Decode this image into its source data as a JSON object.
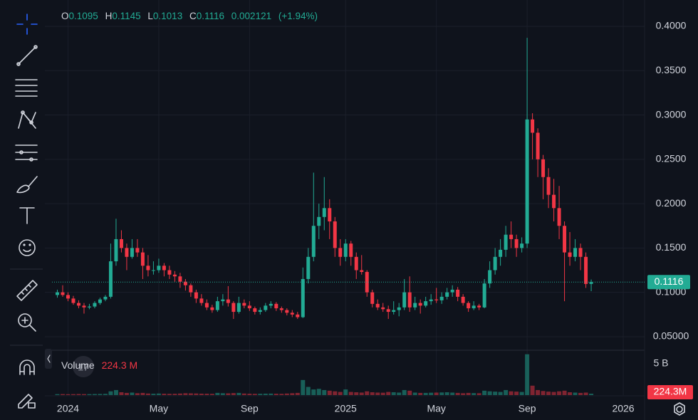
{
  "chart_data": {
    "type": "candlestick",
    "ohlc_labels": [
      "O",
      "H",
      "L",
      "C"
    ],
    "change": 0.002121,
    "change_pct": {
      "value": 1.94,
      "label": "(+1.94%)"
    },
    "up_color": "#22ab94",
    "down_color": "#f23645",
    "ylim": [
      0.0347,
      0.4297
    ],
    "yticks": [
      {
        "value": 0.05,
        "label": "0.05000"
      },
      {
        "value": 0.1,
        "label": "0.1000"
      },
      {
        "value": 0.15,
        "label": "0.1500"
      },
      {
        "value": 0.2,
        "label": "0.2000"
      },
      {
        "value": 0.25,
        "label": "0.2500"
      },
      {
        "value": 0.3,
        "label": "0.3000"
      },
      {
        "value": 0.35,
        "label": "0.3500"
      },
      {
        "value": 0.4,
        "label": "0.4000"
      }
    ],
    "xlim": [
      -1,
      110
    ],
    "xticks": [
      {
        "value": 2,
        "label": "2024"
      },
      {
        "value": 19,
        "label": "May"
      },
      {
        "value": 36,
        "label": "Sep"
      },
      {
        "value": 54,
        "label": "2025"
      },
      {
        "value": 71,
        "label": "May"
      },
      {
        "value": 88,
        "label": "Sep"
      },
      {
        "value": 106,
        "label": "2026"
      }
    ],
    "grid": true,
    "candles": [
      [
        0.097,
        0.103,
        0.094,
        0.1
      ],
      [
        0.1,
        0.108,
        0.095,
        0.097
      ],
      [
        0.097,
        0.1,
        0.09,
        0.093
      ],
      [
        0.093,
        0.096,
        0.086,
        0.088
      ],
      [
        0.088,
        0.091,
        0.082,
        0.085
      ],
      [
        0.085,
        0.088,
        0.076,
        0.083
      ],
      [
        0.083,
        0.087,
        0.081,
        0.084
      ],
      [
        0.084,
        0.09,
        0.082,
        0.088
      ],
      [
        0.088,
        0.094,
        0.086,
        0.092
      ],
      [
        0.092,
        0.097,
        0.09,
        0.095
      ],
      [
        0.095,
        0.155,
        0.093,
        0.135
      ],
      [
        0.135,
        0.183,
        0.13,
        0.16
      ],
      [
        0.16,
        0.17,
        0.145,
        0.15
      ],
      [
        0.15,
        0.155,
        0.125,
        0.14
      ],
      [
        0.14,
        0.16,
        0.138,
        0.15
      ],
      [
        0.15,
        0.16,
        0.14,
        0.145
      ],
      [
        0.145,
        0.15,
        0.115,
        0.13
      ],
      [
        0.13,
        0.142,
        0.118,
        0.125
      ],
      [
        0.125,
        0.135,
        0.12,
        0.125
      ],
      [
        0.125,
        0.138,
        0.122,
        0.13
      ],
      [
        0.13,
        0.133,
        0.118,
        0.125
      ],
      [
        0.125,
        0.13,
        0.115,
        0.12
      ],
      [
        0.12,
        0.124,
        0.112,
        0.118
      ],
      [
        0.118,
        0.122,
        0.105,
        0.112
      ],
      [
        0.112,
        0.115,
        0.102,
        0.108
      ],
      [
        0.108,
        0.11,
        0.095,
        0.1
      ],
      [
        0.1,
        0.103,
        0.088,
        0.093
      ],
      [
        0.093,
        0.098,
        0.085,
        0.088
      ],
      [
        0.088,
        0.092,
        0.08,
        0.083
      ],
      [
        0.083,
        0.086,
        0.077,
        0.08
      ],
      [
        0.08,
        0.095,
        0.078,
        0.09
      ],
      [
        0.09,
        0.098,
        0.085,
        0.092
      ],
      [
        0.092,
        0.107,
        0.084,
        0.088
      ],
      [
        0.088,
        0.09,
        0.07,
        0.078
      ],
      [
        0.078,
        0.095,
        0.076,
        0.088
      ],
      [
        0.088,
        0.092,
        0.082,
        0.085
      ],
      [
        0.085,
        0.09,
        0.079,
        0.082
      ],
      [
        0.082,
        0.084,
        0.075,
        0.078
      ],
      [
        0.078,
        0.083,
        0.075,
        0.08
      ],
      [
        0.08,
        0.088,
        0.078,
        0.085
      ],
      [
        0.085,
        0.09,
        0.082,
        0.087
      ],
      [
        0.087,
        0.089,
        0.079,
        0.082
      ],
      [
        0.082,
        0.084,
        0.077,
        0.08
      ],
      [
        0.08,
        0.082,
        0.074,
        0.077
      ],
      [
        0.077,
        0.08,
        0.072,
        0.075
      ],
      [
        0.075,
        0.078,
        0.07,
        0.072
      ],
      [
        0.072,
        0.128,
        0.071,
        0.115
      ],
      [
        0.115,
        0.15,
        0.11,
        0.14
      ],
      [
        0.14,
        0.235,
        0.135,
        0.175
      ],
      [
        0.175,
        0.2,
        0.16,
        0.185
      ],
      [
        0.185,
        0.23,
        0.17,
        0.195
      ],
      [
        0.195,
        0.205,
        0.16,
        0.18
      ],
      [
        0.18,
        0.185,
        0.14,
        0.15
      ],
      [
        0.15,
        0.16,
        0.13,
        0.14
      ],
      [
        0.14,
        0.16,
        0.135,
        0.155
      ],
      [
        0.155,
        0.158,
        0.13,
        0.14
      ],
      [
        0.14,
        0.145,
        0.115,
        0.125
      ],
      [
        0.125,
        0.142,
        0.12,
        0.123
      ],
      [
        0.123,
        0.125,
        0.095,
        0.1
      ],
      [
        0.1,
        0.103,
        0.083,
        0.087
      ],
      [
        0.087,
        0.092,
        0.08,
        0.083
      ],
      [
        0.083,
        0.088,
        0.078,
        0.081
      ],
      [
        0.081,
        0.085,
        0.07,
        0.078
      ],
      [
        0.078,
        0.09,
        0.075,
        0.08
      ],
      [
        0.08,
        0.088,
        0.073,
        0.083
      ],
      [
        0.083,
        0.115,
        0.08,
        0.1
      ],
      [
        0.1,
        0.118,
        0.078,
        0.083
      ],
      [
        0.083,
        0.095,
        0.08,
        0.088
      ],
      [
        0.088,
        0.092,
        0.076,
        0.085
      ],
      [
        0.085,
        0.095,
        0.083,
        0.09
      ],
      [
        0.09,
        0.098,
        0.086,
        0.092
      ],
      [
        0.092,
        0.105,
        0.088,
        0.091
      ],
      [
        0.091,
        0.1,
        0.087,
        0.095
      ],
      [
        0.095,
        0.105,
        0.092,
        0.1
      ],
      [
        0.1,
        0.108,
        0.095,
        0.103
      ],
      [
        0.103,
        0.106,
        0.09,
        0.095
      ],
      [
        0.095,
        0.098,
        0.085,
        0.088
      ],
      [
        0.088,
        0.09,
        0.078,
        0.082
      ],
      [
        0.082,
        0.09,
        0.08,
        0.085
      ],
      [
        0.085,
        0.087,
        0.08,
        0.083
      ],
      [
        0.083,
        0.115,
        0.082,
        0.11
      ],
      [
        0.11,
        0.135,
        0.105,
        0.125
      ],
      [
        0.125,
        0.15,
        0.12,
        0.14
      ],
      [
        0.14,
        0.16,
        0.13,
        0.148
      ],
      [
        0.148,
        0.175,
        0.14,
        0.165
      ],
      [
        0.165,
        0.18,
        0.15,
        0.16
      ],
      [
        0.16,
        0.165,
        0.14,
        0.15
      ],
      [
        0.15,
        0.162,
        0.145,
        0.155
      ],
      [
        0.155,
        0.387,
        0.15,
        0.295
      ],
      [
        0.295,
        0.302,
        0.25,
        0.28
      ],
      [
        0.28,
        0.285,
        0.23,
        0.25
      ],
      [
        0.25,
        0.255,
        0.205,
        0.23
      ],
      [
        0.23,
        0.24,
        0.195,
        0.21
      ],
      [
        0.21,
        0.228,
        0.18,
        0.195
      ],
      [
        0.195,
        0.22,
        0.16,
        0.175
      ],
      [
        0.175,
        0.18,
        0.09,
        0.145
      ],
      [
        0.145,
        0.168,
        0.13,
        0.14
      ],
      [
        0.14,
        0.16,
        0.135,
        0.15
      ],
      [
        0.15,
        0.155,
        0.125,
        0.14
      ],
      [
        0.14,
        0.145,
        0.105,
        0.1095
      ],
      [
        0.1095,
        0.1145,
        0.1013,
        0.1116
      ]
    ],
    "volume_title": "Volume",
    "volume": [
      150,
      160,
      140,
      150,
      170,
      160,
      150,
      170,
      180,
      200,
      600,
      800,
      450,
      350,
      400,
      300,
      350,
      250,
      220,
      250,
      220,
      200,
      210,
      250,
      300,
      280,
      260,
      230,
      220,
      200,
      350,
      300,
      280,
      320,
      350,
      250,
      220,
      200,
      210,
      230,
      240,
      220,
      200,
      250,
      300,
      350,
      2400,
      1300,
      900,
      1000,
      800,
      700,
      600,
      500,
      900,
      500,
      450,
      400,
      600,
      450,
      400,
      380,
      500,
      450,
      400,
      800,
      700,
      400,
      350,
      350,
      380,
      400,
      420,
      450,
      400,
      350,
      300,
      350,
      320,
      300,
      700,
      600,
      550,
      500,
      800,
      600,
      550,
      500,
      6500,
      1500,
      800,
      650,
      550,
      500,
      600,
      700,
      450,
      400,
      350,
      400,
      224.3
    ],
    "volume_label": {
      "value": 224.3,
      "label": "224.3 M"
    },
    "volume_axis_label": {
      "value": 224.3,
      "label": "224.3M"
    },
    "vlim": [
      0,
      6800
    ],
    "vticks": [
      {
        "value": 5000,
        "label": "5 B"
      }
    ]
  }
}
